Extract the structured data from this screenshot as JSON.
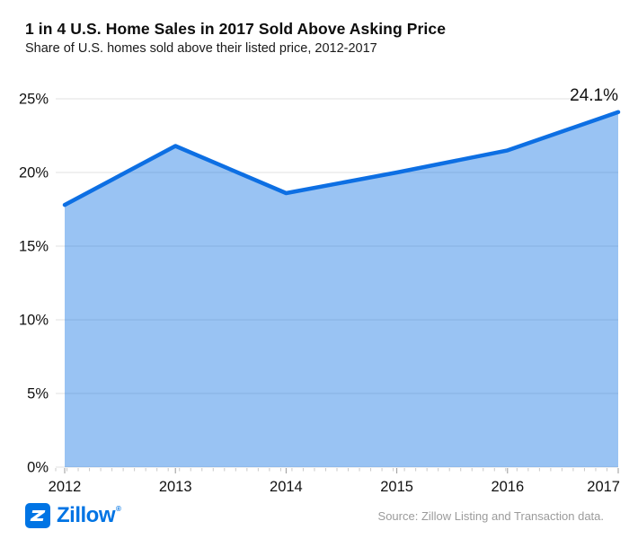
{
  "header": {
    "title": "1 in 4 U.S. Home Sales in 2017 Sold Above Asking Price",
    "subtitle": "Share of U.S. homes sold above their listed price, 2012-2017"
  },
  "chart_data": {
    "type": "area",
    "categories": [
      "2012",
      "2013",
      "2014",
      "2015",
      "2016",
      "2017"
    ],
    "values": [
      17.8,
      21.8,
      18.6,
      20.0,
      21.5,
      24.1
    ],
    "y_ticks": [
      "0%",
      "5%",
      "10%",
      "15%",
      "20%",
      "25%"
    ],
    "ylim": [
      0,
      25
    ],
    "grid": true,
    "legend": "none",
    "annotation": {
      "text": "24.1%",
      "category": "2017",
      "value": 24.1
    },
    "title": "1 in 4 U.S. Home Sales in 2017 Sold Above Asking Price",
    "xlabel": "",
    "ylabel": ""
  },
  "colors": {
    "line": "#0d6fe3",
    "fill": "#0d6fe3",
    "fill_opacity": "0.42",
    "grid": "#e2e2e2",
    "axis_text": "#111111",
    "minor_tick": "#c8c8c8",
    "major_tick": "#999999",
    "logo_blue": "#0074E4"
  },
  "footer": {
    "brand": "Zillow",
    "registered": "®",
    "source": "Source: Zillow Listing and Transaction data."
  }
}
